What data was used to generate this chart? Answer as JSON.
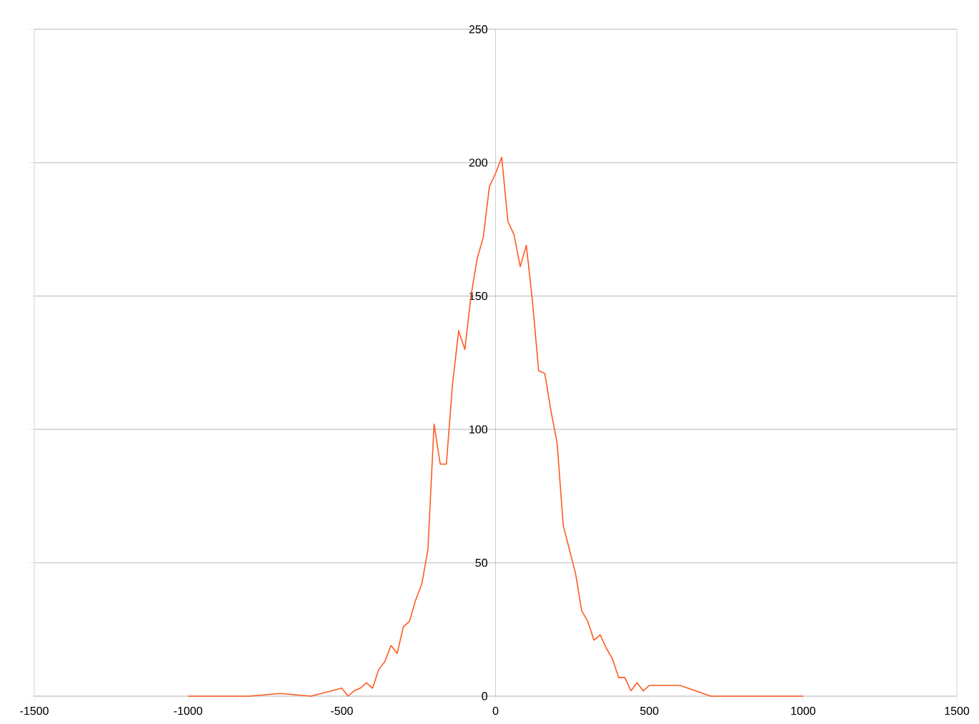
{
  "chart_data": {
    "type": "line",
    "color": "#ff5a1f",
    "marker": "none",
    "grid": "y",
    "x": [
      -1000,
      -900,
      -800,
      -700,
      -600,
      -500,
      -480,
      -460,
      -440,
      -420,
      -400,
      -380,
      -360,
      -340,
      -320,
      -300,
      -280,
      -260,
      -240,
      -220,
      -200,
      -180,
      -160,
      -140,
      -120,
      -100,
      -80,
      -60,
      -40,
      -20,
      0,
      20,
      40,
      60,
      80,
      100,
      120,
      140,
      160,
      180,
      200,
      220,
      240,
      260,
      280,
      300,
      320,
      340,
      360,
      380,
      400,
      420,
      440,
      460,
      480,
      500,
      600,
      700,
      800,
      900,
      1000
    ],
    "values": [
      0,
      0,
      0,
      1,
      0,
      3,
      0,
      2,
      3,
      5,
      3,
      10,
      13,
      19,
      16,
      26,
      28,
      36,
      42,
      55,
      102,
      87,
      87,
      117,
      137,
      130,
      150,
      164,
      172,
      191,
      196,
      202,
      178,
      173,
      161,
      169,
      148,
      122,
      121,
      107,
      95,
      64,
      55,
      46,
      32,
      28,
      21,
      23,
      18,
      14,
      7,
      7,
      2,
      5,
      2,
      4,
      4,
      0,
      0,
      0,
      0
    ],
    "xlim": [
      -1500,
      1500
    ],
    "ylim": [
      0,
      250
    ],
    "xticks": [
      -1500,
      -1000,
      -500,
      0,
      500,
      1000,
      1500
    ],
    "yticks": [
      0,
      50,
      100,
      150,
      200,
      250
    ]
  }
}
